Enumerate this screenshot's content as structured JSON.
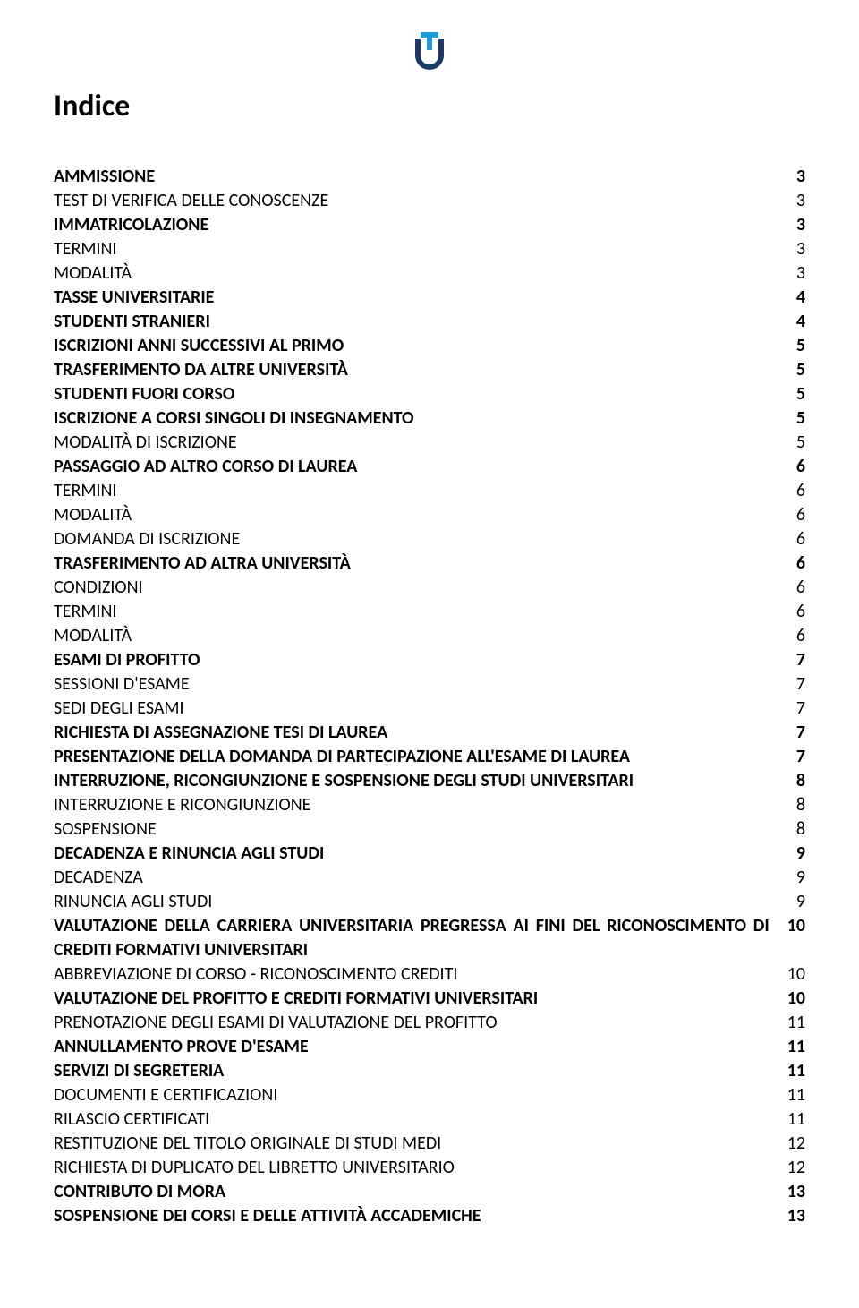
{
  "title": "Indice",
  "logo": {
    "outer_color": "#1f3a62",
    "inner_color": "#1e9bd7"
  },
  "entries": [
    {
      "label": "AMMISSIONE",
      "page": "3",
      "bold": true
    },
    {
      "label": "TEST DI VERIFICA DELLE CONOSCENZE",
      "page": "3",
      "bold": false
    },
    {
      "label": "IMMATRICOLAZIONE",
      "page": "3",
      "bold": true
    },
    {
      "label": "TERMINI",
      "page": "3",
      "bold": false
    },
    {
      "label": "MODALITÀ",
      "page": "3",
      "bold": false
    },
    {
      "label": "TASSE UNIVERSITARIE",
      "page": "4",
      "bold": true
    },
    {
      "label": "STUDENTI STRANIERI",
      "page": "4",
      "bold": true
    },
    {
      "label": "ISCRIZIONI ANNI SUCCESSIVI AL PRIMO",
      "page": "5",
      "bold": true
    },
    {
      "label": "TRASFERIMENTO DA ALTRE UNIVERSITÀ",
      "page": "5",
      "bold": true
    },
    {
      "label": "STUDENTI FUORI CORSO",
      "page": "5",
      "bold": true
    },
    {
      "label": "ISCRIZIONE A CORSI SINGOLI DI INSEGNAMENTO",
      "page": "5",
      "bold": true
    },
    {
      "label": "MODALITÀ DI ISCRIZIONE",
      "page": "5",
      "bold": false
    },
    {
      "label": "PASSAGGIO AD ALTRO CORSO DI LAUREA",
      "page": "6",
      "bold": true
    },
    {
      "label": "TERMINI",
      "page": "6",
      "bold": false
    },
    {
      "label": "MODALITÀ",
      "page": "6",
      "bold": false
    },
    {
      "label": "DOMANDA DI ISCRIZIONE",
      "page": "6",
      "bold": false
    },
    {
      "label": "TRASFERIMENTO AD ALTRA UNIVERSITÀ",
      "page": "6",
      "bold": true
    },
    {
      "label": "CONDIZIONI",
      "page": "6",
      "bold": false
    },
    {
      "label": "TERMINI",
      "page": "6",
      "bold": false
    },
    {
      "label": "MODALITÀ",
      "page": "6",
      "bold": false
    },
    {
      "label": "ESAMI DI PROFITTO",
      "page": "7",
      "bold": true
    },
    {
      "label": "SESSIONI D'ESAME",
      "page": "7",
      "bold": false
    },
    {
      "label": "SEDI DEGLI ESAMI",
      "page": "7",
      "bold": false
    },
    {
      "label": "RICHIESTA DI ASSEGNAZIONE TESI DI LAUREA",
      "page": "7",
      "bold": true
    },
    {
      "label": "PRESENTAZIONE DELLA DOMANDA DI PARTECIPAZIONE ALL'ESAME DI LAUREA",
      "page": "7",
      "bold": true
    },
    {
      "label": "INTERRUZIONE, RICONGIUNZIONE E SOSPENSIONE DEGLI STUDI UNIVERSITARI",
      "page": "8",
      "bold": true
    },
    {
      "label": "INTERRUZIONE E RICONGIUNZIONE",
      "page": "8",
      "bold": false
    },
    {
      "label": "SOSPENSIONE",
      "page": "8",
      "bold": false
    },
    {
      "label": "DECADENZA E RINUNCIA AGLI STUDI",
      "page": "9",
      "bold": true
    },
    {
      "label": "DECADENZA",
      "page": "9",
      "bold": false
    },
    {
      "label": "RINUNCIA AGLI STUDI",
      "page": "9",
      "bold": false
    },
    {
      "label": "VALUTAZIONE DELLA CARRIERA UNIVERSITARIA PREGRESSA AI FINI DEL RICONOSCIMENTO DI CREDITI FORMATIVI UNIVERSITARI",
      "page": "10",
      "bold": true,
      "wrap": true
    },
    {
      "label": "ABBREVIAZIONE DI CORSO - RICONOSCIMENTO CREDITI",
      "page": "10",
      "bold": false
    },
    {
      "label": "VALUTAZIONE DEL PROFITTO E CREDITI FORMATIVI UNIVERSITARI",
      "page": "10",
      "bold": true
    },
    {
      "label": "PRENOTAZIONE DEGLI ESAMI DI VALUTAZIONE DEL PROFITTO",
      "page": "11",
      "bold": false
    },
    {
      "label": "ANNULLAMENTO PROVE D'ESAME",
      "page": "11",
      "bold": true
    },
    {
      "label": "SERVIZI DI SEGRETERIA",
      "page": "11",
      "bold": true
    },
    {
      "label": "DOCUMENTI E CERTIFICAZIONI",
      "page": "11",
      "bold": false
    },
    {
      "label": "RILASCIO CERTIFICATI",
      "page": "11",
      "bold": false
    },
    {
      "label": "RESTITUZIONE DEL TITOLO ORIGINALE DI STUDI MEDI",
      "page": "12",
      "bold": false
    },
    {
      "label": "RICHIESTA DI DUPLICATO DEL LIBRETTO UNIVERSITARIO",
      "page": "12",
      "bold": false
    },
    {
      "label": "CONTRIBUTO DI MORA",
      "page": "13",
      "bold": true
    },
    {
      "label": "SOSPENSIONE DEI CORSI E DELLE ATTIVITÀ ACCADEMICHE",
      "page": "13",
      "bold": true
    }
  ]
}
